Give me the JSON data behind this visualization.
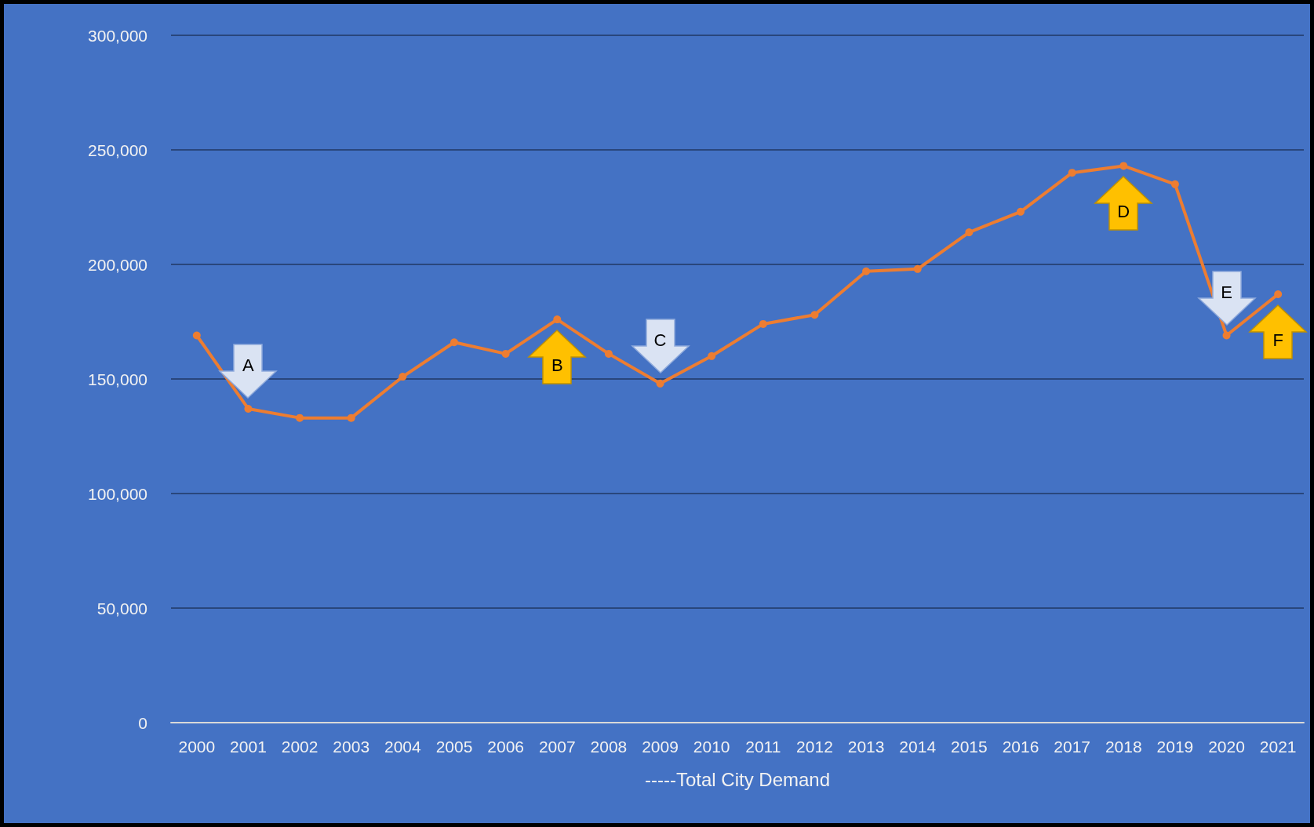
{
  "chart_data": {
    "type": "line",
    "xlabel": "-----Total City Demand",
    "categories": [
      "2000",
      "2001",
      "2002",
      "2003",
      "2004",
      "2005",
      "2006",
      "2007",
      "2008",
      "2009",
      "2010",
      "2011",
      "2012",
      "2013",
      "2014",
      "2015",
      "2016",
      "2017",
      "2018",
      "2019",
      "2020",
      "2021"
    ],
    "series": [
      {
        "color": "#ed7d31",
        "values": [
          169000,
          137000,
          133000,
          133000,
          151000,
          166000,
          161000,
          176000,
          161000,
          148000,
          160000,
          174000,
          178000,
          197000,
          198000,
          214000,
          223000,
          240000,
          243000,
          235000,
          169000,
          187000
        ]
      }
    ],
    "ylim": [
      0,
      300000
    ],
    "yticks": [
      0,
      {
        "value": 50000,
        "label": "50,000"
      },
      {
        "value": 100000,
        "label": "100,000"
      },
      {
        "value": 150000,
        "label": "150,000"
      },
      {
        "value": 200000,
        "label": "200,000"
      },
      {
        "value": 250000,
        "label": "250,000"
      },
      {
        "value": 300000,
        "label": "300,000"
      }
    ],
    "grid": "y",
    "marker": "circle",
    "line_style": "solid",
    "annotations": [
      {
        "text": "A",
        "x": "2001",
        "y": 137000
      },
      {
        "text": "B",
        "x": "2007",
        "y": 176000
      },
      {
        "text": "C",
        "x": "2009",
        "y": 148000
      },
      {
        "text": "D",
        "x": "2018",
        "y": 243000
      },
      {
        "text": "E",
        "x": "2020",
        "y": 169000
      },
      {
        "text": "F",
        "x": "2021",
        "y": 187000
      }
    ]
  }
}
